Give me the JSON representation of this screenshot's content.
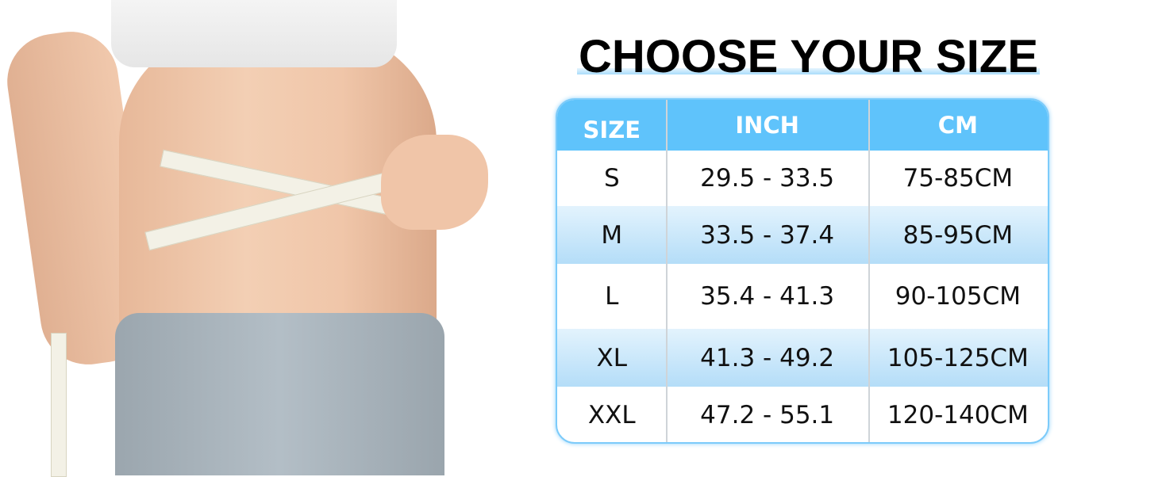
{
  "title": "CHOOSE YOUR SIZE",
  "colors": {
    "header": "#5fc3fb",
    "stripe": "#b4ddf8",
    "border": "#7ccbfa"
  },
  "table": {
    "headers": [
      "SIZE",
      "INCH",
      "CM"
    ],
    "rows": [
      [
        "S",
        "29.5 - 33.5",
        "75-85CM"
      ],
      [
        "M",
        "33.5 - 37.4",
        "85-95CM"
      ],
      [
        "L",
        "35.4 - 41.3",
        "90-105CM"
      ],
      [
        "XL",
        "41.3 - 49.2",
        "105-125CM"
      ],
      [
        "XXL",
        "47.2 - 55.1",
        "120-140CM"
      ]
    ]
  }
}
